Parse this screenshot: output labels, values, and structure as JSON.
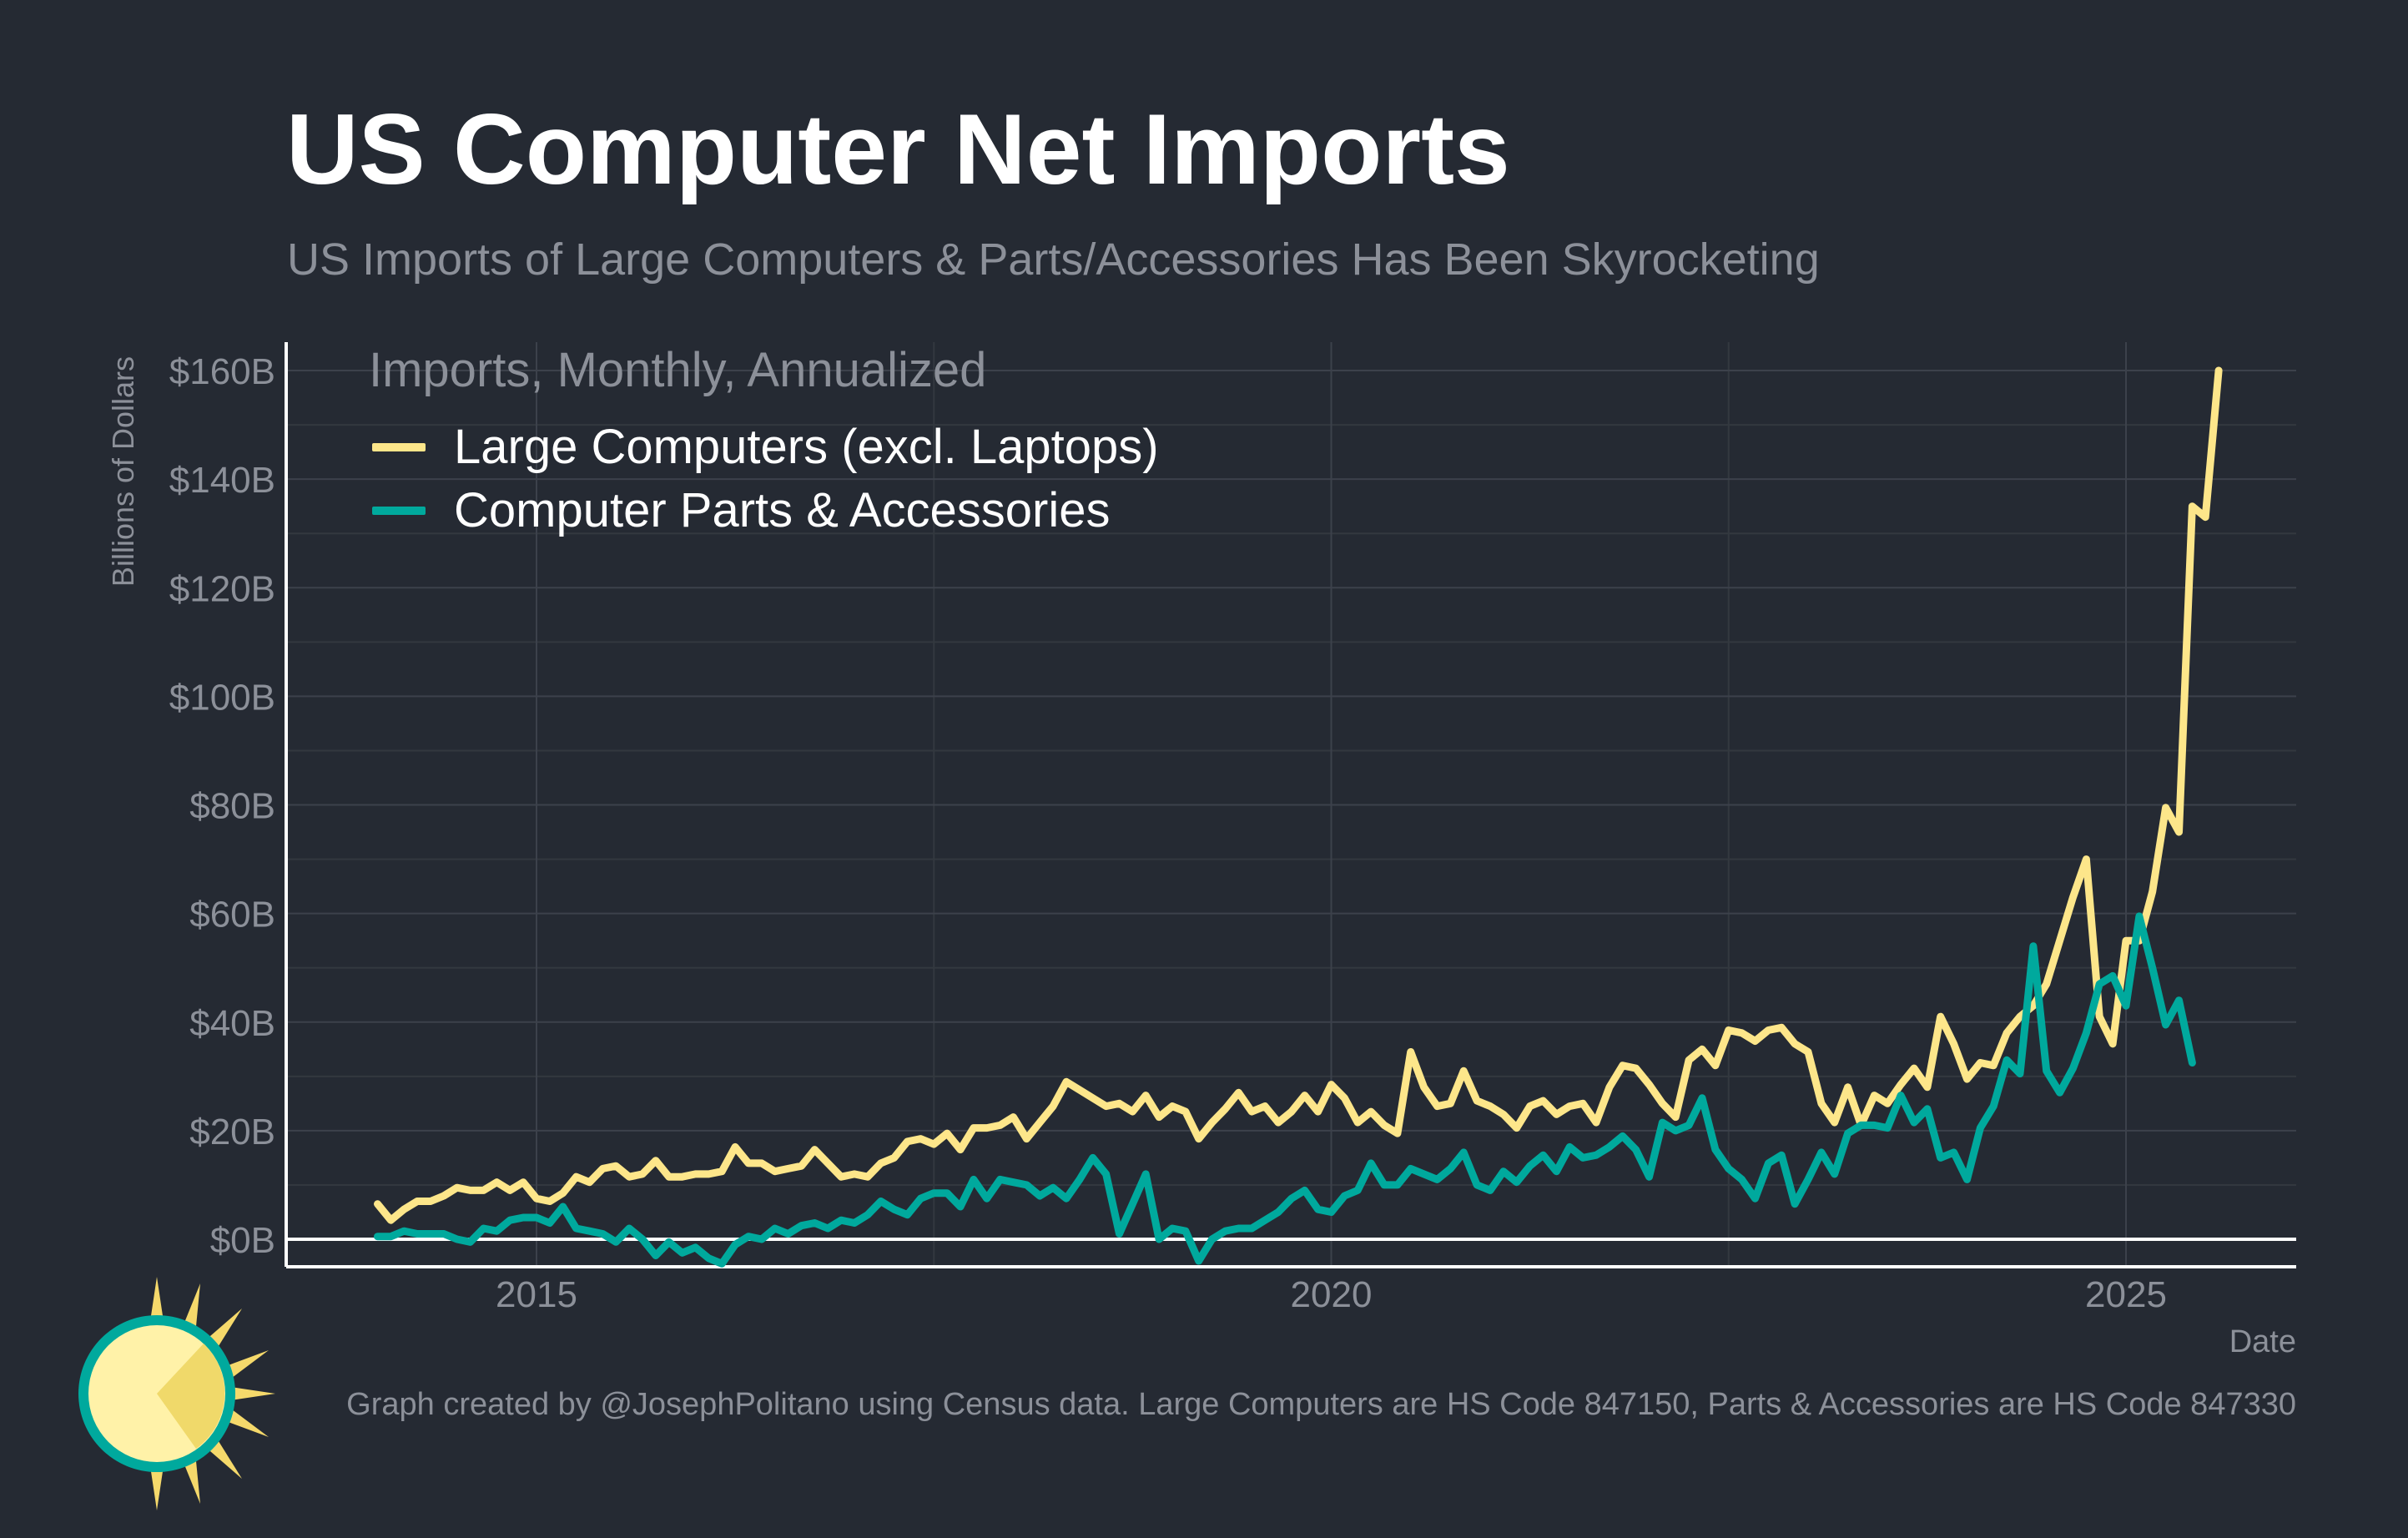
{
  "title": "US Computer Net Imports",
  "subtitle": "US Imports of Large Computers & Parts/Accessories Has Been Skyrocketing",
  "footer": "Graph created by @JosephPolitano using Census data. Large Computers are HS Code 847150, Parts & Accessories are HS Code 847330",
  "colors": {
    "background": "#252a33",
    "large": "#fde68a",
    "parts": "#00a99d",
    "grid": "#3a3f49",
    "axis": "#ffffff",
    "muted": "#8c9099"
  },
  "chart_data": {
    "type": "line",
    "title": "US Computer Net Imports",
    "subtitle": "US Imports of Large Computers & Parts/Accessories Has Been Skyrocketing",
    "xlabel": "Date",
    "ylabel": "Billions of Dollars",
    "legend_title": "Imports, Monthly, Annualized",
    "legend_position": "top-left",
    "grid": true,
    "xlim": [
      2013.4,
      2026.1
    ],
    "ylim": [
      -5,
      165
    ],
    "x_ticks": [
      2015,
      2020,
      2025
    ],
    "x_tick_labels": [
      "2015",
      "2020",
      "2025"
    ],
    "y_ticks": [
      0,
      20,
      40,
      60,
      80,
      100,
      120,
      140,
      160
    ],
    "y_tick_labels": [
      "$0B",
      "$20B",
      "$40B",
      "$60B",
      "$80B",
      "$100B",
      "$120B",
      "$140B",
      "$160B"
    ],
    "x_start": 2014.0,
    "x_step": 0.0833333,
    "series": [
      {
        "name": "Large Computers (excl. Laptops)",
        "color": "#fde68a",
        "values": [
          6.5,
          3.5,
          5.5,
          7,
          7,
          8,
          9.5,
          9,
          9,
          10.5,
          9,
          10.5,
          7.5,
          7,
          8.5,
          11.5,
          10.5,
          13,
          13.5,
          11.5,
          12,
          14.5,
          11.5,
          11.5,
          12,
          12,
          12.5,
          17,
          14,
          14,
          12.5,
          13,
          13.5,
          16.5,
          14,
          11.5,
          12,
          11.5,
          14,
          15,
          18,
          18.5,
          17.5,
          19.5,
          16.5,
          20.5,
          20.5,
          21,
          22.5,
          18.5,
          21.5,
          24.5,
          29,
          27.5,
          26,
          24.5,
          25,
          23.5,
          26.5,
          22.5,
          24.5,
          23.5,
          18.5,
          21.5,
          24,
          27,
          23.5,
          24.5,
          21.5,
          23.5,
          26.5,
          23.5,
          28.5,
          26,
          21.5,
          23.5,
          21,
          19.5,
          34.5,
          28,
          24.5,
          25,
          31,
          25.5,
          24.5,
          23,
          20.5,
          24.5,
          25.5,
          23,
          24.5,
          25,
          21.5,
          28,
          32,
          31.5,
          28.5,
          25,
          22.5,
          33,
          35,
          32,
          38.5,
          38,
          36.5,
          38.5,
          39,
          36,
          34.5,
          25,
          21.5,
          28,
          21,
          26.5,
          25,
          28.5,
          31.5,
          28,
          41,
          36,
          29.5,
          32.5,
          32,
          38,
          41,
          43,
          47,
          55,
          63,
          70,
          41,
          36,
          55,
          55,
          64,
          79.5,
          75,
          135,
          133,
          160
        ]
      },
      {
        "name": "Computer Parts & Accessories",
        "color": "#00a99d",
        "values": [
          0.5,
          0.5,
          1.5,
          1,
          1,
          1,
          0,
          -0.5,
          2,
          1.5,
          3.5,
          4,
          4,
          3,
          6,
          2,
          1.5,
          1,
          -0.5,
          2,
          0,
          -3,
          -0.5,
          -2.5,
          -1.5,
          -3.5,
          -4.5,
          -1,
          0.5,
          0,
          2,
          1,
          2.5,
          3,
          2,
          3.5,
          3,
          4.5,
          7,
          5.5,
          4.5,
          7.5,
          8.5,
          8.5,
          6,
          11,
          7.5,
          11,
          10.5,
          10,
          8,
          9.5,
          7.5,
          11,
          15,
          12,
          1,
          6.5,
          12,
          0,
          2,
          1.5,
          -4,
          0,
          1.5,
          2,
          2,
          3.5,
          5,
          7.5,
          9,
          5.5,
          5,
          8,
          9,
          14,
          10,
          10,
          13,
          12,
          11,
          13,
          16,
          10,
          9,
          12.5,
          10.5,
          13.5,
          15.5,
          12.5,
          17,
          15,
          15.5,
          17,
          19,
          16.5,
          11.5,
          21.5,
          20,
          21,
          26,
          16.5,
          13,
          11,
          7.5,
          14,
          15.5,
          6.5,
          11,
          16,
          12,
          19.5,
          21,
          21,
          20.5,
          26.5,
          21.5,
          24,
          15,
          16,
          11,
          20.5,
          24.5,
          33,
          30.5,
          54,
          31,
          27,
          31.5,
          38,
          47,
          48.5,
          43,
          59.5,
          50,
          39.5,
          44,
          32.5
        ]
      }
    ]
  }
}
